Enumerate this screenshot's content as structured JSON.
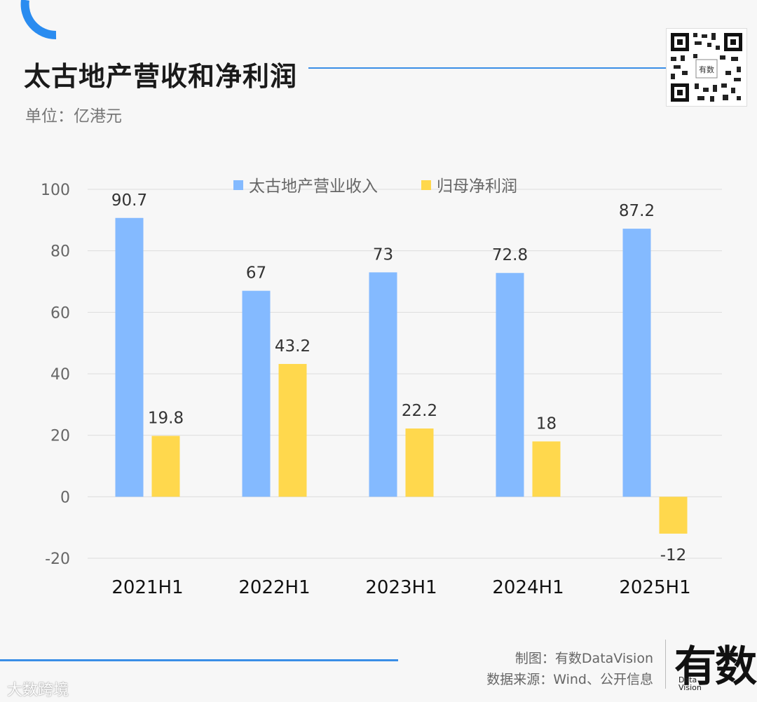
{
  "header": {
    "title": "太古地产营收和净利润",
    "unit": "单位：亿港元"
  },
  "footer": {
    "credit": "制图：有数DataVision",
    "source": "数据来源：Wind、公开信息",
    "logo_text": "有数",
    "logo_sub": "Data Vision",
    "watermark": "大数跨境"
  },
  "colors": {
    "accent": "#3a8ee6",
    "revenue": "#84baff",
    "profit": "#ffd84d"
  },
  "icons": {
    "qr": "qr-code-icon"
  },
  "chart_data": {
    "type": "bar",
    "categories": [
      "2021H1",
      "2022H1",
      "2023H1",
      "2024H1",
      "2025H1"
    ],
    "series": [
      {
        "name": "太古地产营业收入",
        "values": [
          90.7,
          67,
          73,
          72.8,
          87.2
        ]
      },
      {
        "name": "归母净利润",
        "values": [
          19.8,
          43.2,
          22.2,
          18,
          -12
        ]
      }
    ],
    "ylim": [
      -20,
      100
    ],
    "yticks": [
      100,
      80,
      60,
      40,
      20,
      0,
      -20
    ],
    "grid": true,
    "legend": "top-center"
  }
}
